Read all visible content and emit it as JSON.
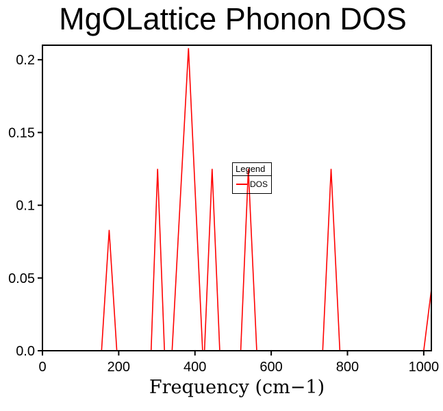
{
  "chart": {
    "title": "MgOLattice Phonon DOS",
    "xlabel": "Frequency (cm−1)"
  },
  "legend": {
    "title": "Legend",
    "entries": [
      {
        "label": "DOS",
        "color": "#ff0000"
      }
    ]
  },
  "chart_data": {
    "type": "line",
    "title": "MgOLattice Phonon DOS",
    "xlabel": "Frequency (cm-1)",
    "ylabel": "",
    "xlim": [
      0,
      1020
    ],
    "ylim": [
      0,
      0.21
    ],
    "xticks": [
      0,
      200,
      400,
      600,
      800,
      1000
    ],
    "xtick_labels": [
      "0",
      "200",
      "400",
      "600",
      "800",
      "1000"
    ],
    "yticks": [
      0,
      0.05,
      0.1,
      0.15,
      0.2
    ],
    "ytick_labels": [
      "0.0",
      "0.05",
      "0.1",
      "0.15",
      "0.2"
    ],
    "grid": false,
    "legend_position": "center",
    "line_color": "#ff0000",
    "frame_color": "#000000",
    "series": [
      {
        "name": "DOS",
        "points": [
          [
            0,
            0
          ],
          [
            155,
            0
          ],
          [
            175,
            0.083
          ],
          [
            195,
            0
          ],
          [
            285,
            0
          ],
          [
            302,
            0.125
          ],
          [
            320,
            0
          ],
          [
            340,
            0
          ],
          [
            383,
            0.208
          ],
          [
            420,
            0
          ],
          [
            425,
            0
          ],
          [
            445,
            0.125
          ],
          [
            465,
            0
          ],
          [
            520,
            0
          ],
          [
            540,
            0.125
          ],
          [
            562,
            0
          ],
          [
            735,
            0
          ],
          [
            757,
            0.125
          ],
          [
            780,
            0
          ],
          [
            1000,
            0
          ],
          [
            1020,
            0.042
          ]
        ]
      }
    ]
  }
}
